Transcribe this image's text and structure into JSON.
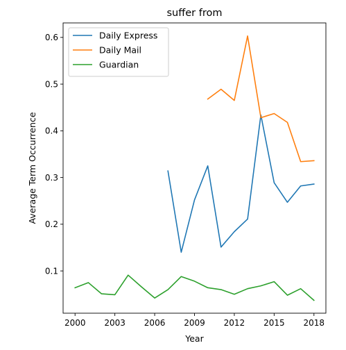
{
  "chart_data": {
    "type": "line",
    "title": "suffer from",
    "xlabel": "Year",
    "ylabel": "Average Term Occurrence",
    "xlim": [
      1999.1,
      2018.9
    ],
    "ylim": [
      0.0095,
      0.631
    ],
    "xticks": [
      2000,
      2003,
      2006,
      2009,
      2012,
      2015,
      2018
    ],
    "xtick_labels": [
      "2000",
      "2003",
      "2006",
      "2009",
      "2012",
      "2015",
      "2018"
    ],
    "yticks": [
      0.1,
      0.2,
      0.3,
      0.4,
      0.5,
      0.6
    ],
    "ytick_labels": [
      "0.1",
      "0.2",
      "0.3",
      "0.4",
      "0.5",
      "0.6"
    ],
    "grid": false,
    "legend_position": "top-left",
    "series": [
      {
        "name": "Daily Express",
        "color": "#1f77b4",
        "x": [
          2007,
          2008,
          2009,
          2010,
          2011,
          2012,
          2013,
          2014,
          2015,
          2016,
          2017,
          2018
        ],
        "y": [
          0.314,
          0.14,
          0.252,
          0.325,
          0.151,
          0.184,
          0.211,
          0.434,
          0.289,
          0.247,
          0.282,
          0.286
        ]
      },
      {
        "name": "Daily Mail",
        "color": "#ff7f0e",
        "x": [
          2010,
          2011,
          2012,
          2013,
          2014,
          2015,
          2016,
          2017,
          2018
        ],
        "y": [
          0.468,
          0.489,
          0.465,
          0.603,
          0.428,
          0.437,
          0.418,
          0.334,
          0.336
        ]
      },
      {
        "name": "Guardian",
        "color": "#2ca02c",
        "x": [
          2000,
          2001,
          2002,
          2003,
          2004,
          2005,
          2006,
          2007,
          2008,
          2009,
          2010,
          2011,
          2012,
          2013,
          2014,
          2015,
          2016,
          2017,
          2018
        ],
        "y": [
          0.064,
          0.075,
          0.051,
          0.049,
          0.091,
          0.066,
          0.042,
          0.06,
          0.088,
          0.078,
          0.064,
          0.06,
          0.05,
          0.062,
          0.068,
          0.077,
          0.048,
          0.062,
          0.037
        ]
      }
    ]
  }
}
